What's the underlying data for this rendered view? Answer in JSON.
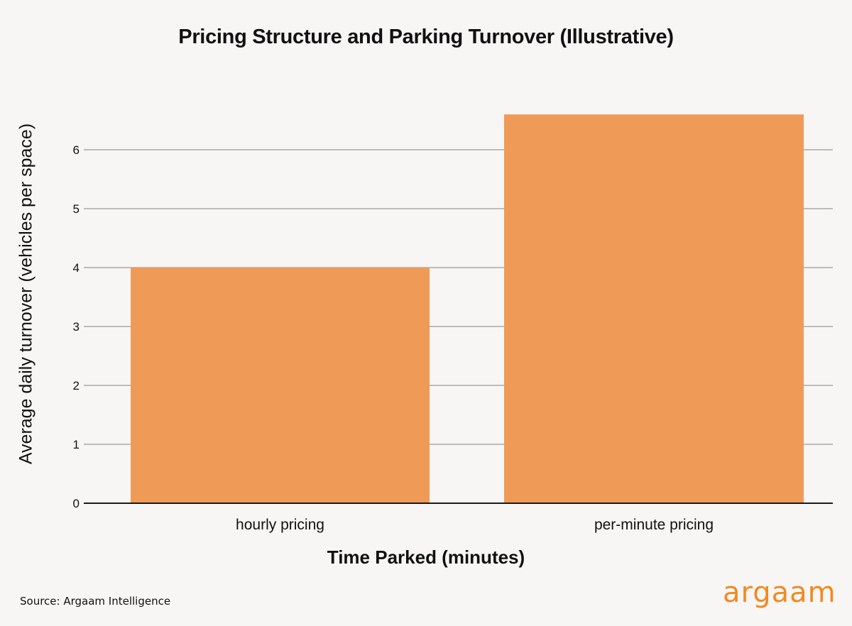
{
  "chart_data": {
    "type": "bar",
    "title": "Pricing Structure and Parking Turnover (Illustrative)",
    "xlabel": "Time Parked (minutes)",
    "ylabel": "Average daily turnover (vehicles per space)",
    "categories": [
      "hourly pricing",
      "per-minute pricing"
    ],
    "values": [
      4.0,
      6.6
    ],
    "ylim": [
      0,
      7
    ],
    "yticks": [
      0,
      1,
      2,
      3,
      4,
      5,
      6
    ],
    "grid": true,
    "legend": null,
    "bar_color": "#f09a58"
  },
  "footer": {
    "source": "Source: Argaam Intelligence",
    "logo": "argaam",
    "logo_color": "#f08a24"
  }
}
